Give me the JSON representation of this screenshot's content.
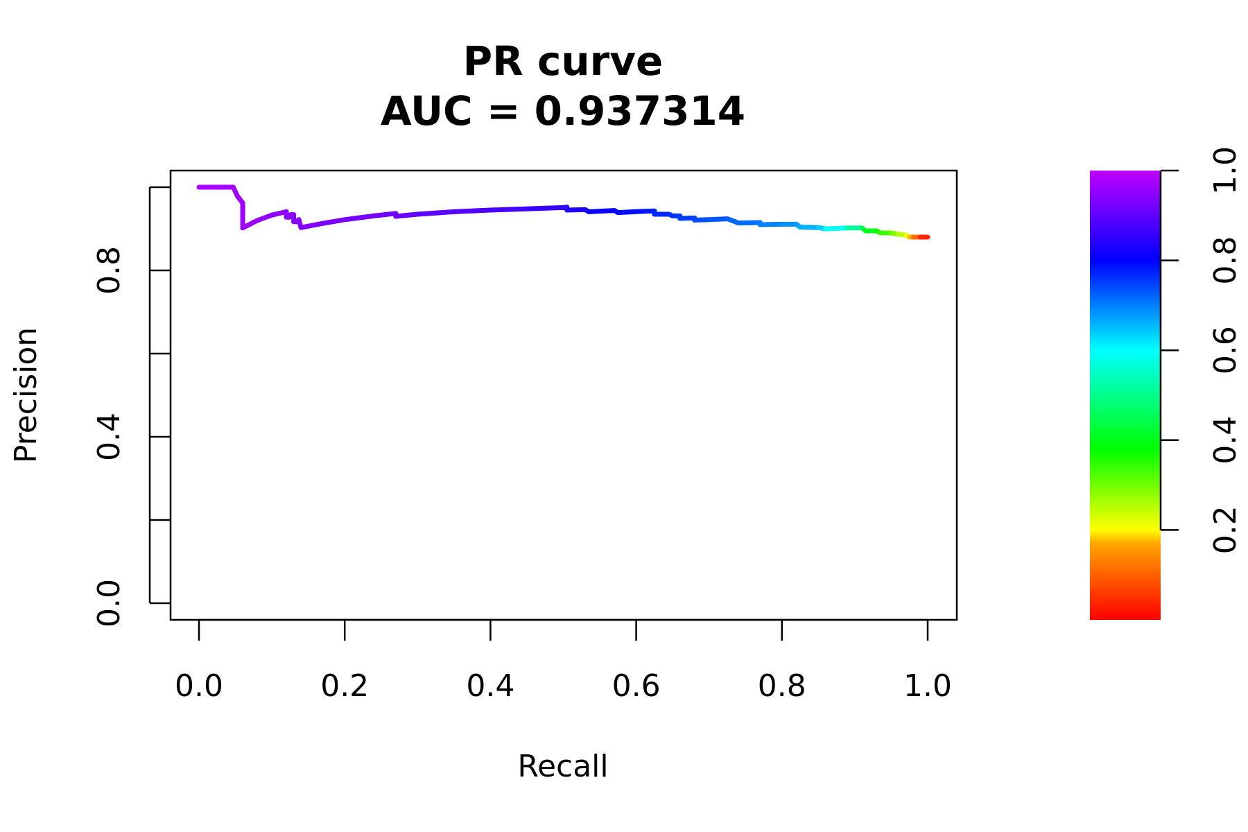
{
  "chart_data": {
    "type": "line",
    "title_line1": "PR curve",
    "title_line2": "AUC = 0.937314",
    "xlabel": "Recall",
    "ylabel": "Precision",
    "xlim": [
      0.0,
      1.0
    ],
    "ylim": [
      0.0,
      1.0
    ],
    "x_ticks": [
      "0.0",
      "0.2",
      "0.4",
      "0.6",
      "0.8",
      "1.0"
    ],
    "y_ticks": [
      "0.0",
      "0.4",
      "0.8"
    ],
    "grid": false,
    "colorbar": {
      "ticks": [
        "0.2",
        "0.4",
        "0.6",
        "0.8",
        "1.0"
      ],
      "range": [
        0.0,
        1.0
      ],
      "colormap": "rainbow (red to magenta)"
    },
    "series": [
      {
        "points": [
          [
            0.0,
            1.0,
            1.0
          ],
          [
            0.047,
            1.0,
            1.0
          ],
          [
            0.053,
            0.978,
            0.99
          ],
          [
            0.06,
            0.962,
            0.99
          ],
          [
            0.06,
            0.902,
            0.99
          ],
          [
            0.08,
            0.92,
            0.985
          ],
          [
            0.1,
            0.933,
            0.98
          ],
          [
            0.12,
            0.941,
            0.975
          ],
          [
            0.12,
            0.928,
            0.975
          ],
          [
            0.124,
            0.928,
            0.974
          ],
          [
            0.126,
            0.934,
            0.973
          ],
          [
            0.13,
            0.934,
            0.972
          ],
          [
            0.13,
            0.917,
            0.972
          ],
          [
            0.134,
            0.917,
            0.971
          ],
          [
            0.137,
            0.922,
            0.97
          ],
          [
            0.14,
            0.903,
            0.97
          ],
          [
            0.17,
            0.913,
            0.965
          ],
          [
            0.2,
            0.922,
            0.96
          ],
          [
            0.24,
            0.931,
            0.955
          ],
          [
            0.27,
            0.937,
            0.95
          ],
          [
            0.27,
            0.93,
            0.95
          ],
          [
            0.3,
            0.935,
            0.94
          ],
          [
            0.35,
            0.941,
            0.93
          ],
          [
            0.4,
            0.945,
            0.92
          ],
          [
            0.45,
            0.948,
            0.91
          ],
          [
            0.5,
            0.951,
            0.9
          ],
          [
            0.505,
            0.952,
            0.895
          ],
          [
            0.505,
            0.945,
            0.895
          ],
          [
            0.53,
            0.946,
            0.88
          ],
          [
            0.535,
            0.941,
            0.875
          ],
          [
            0.57,
            0.944,
            0.86
          ],
          [
            0.575,
            0.939,
            0.855
          ],
          [
            0.61,
            0.942,
            0.84
          ],
          [
            0.625,
            0.943,
            0.83
          ],
          [
            0.625,
            0.935,
            0.83
          ],
          [
            0.645,
            0.935,
            0.82
          ],
          [
            0.65,
            0.931,
            0.815
          ],
          [
            0.66,
            0.931,
            0.81
          ],
          [
            0.66,
            0.925,
            0.81
          ],
          [
            0.68,
            0.926,
            0.8
          ],
          [
            0.68,
            0.921,
            0.8
          ],
          [
            0.7,
            0.922,
            0.79
          ],
          [
            0.725,
            0.924,
            0.78
          ],
          [
            0.73,
            0.921,
            0.775
          ],
          [
            0.74,
            0.914,
            0.77
          ],
          [
            0.77,
            0.915,
            0.76
          ],
          [
            0.77,
            0.91,
            0.755
          ],
          [
            0.8,
            0.911,
            0.74
          ],
          [
            0.82,
            0.911,
            0.73
          ],
          [
            0.825,
            0.904,
            0.72
          ],
          [
            0.85,
            0.903,
            0.7
          ],
          [
            0.86,
            0.9,
            0.67
          ],
          [
            0.89,
            0.902,
            0.6
          ],
          [
            0.91,
            0.902,
            0.52
          ],
          [
            0.915,
            0.895,
            0.47
          ],
          [
            0.93,
            0.895,
            0.43
          ],
          [
            0.935,
            0.89,
            0.4
          ],
          [
            0.95,
            0.89,
            0.35
          ],
          [
            0.96,
            0.887,
            0.3
          ],
          [
            0.97,
            0.885,
            0.25
          ],
          [
            0.975,
            0.88,
            0.2
          ],
          [
            0.98,
            0.88,
            0.12
          ],
          [
            0.99,
            0.88,
            0.06
          ],
          [
            1.0,
            0.88,
            0.0
          ]
        ]
      }
    ]
  }
}
